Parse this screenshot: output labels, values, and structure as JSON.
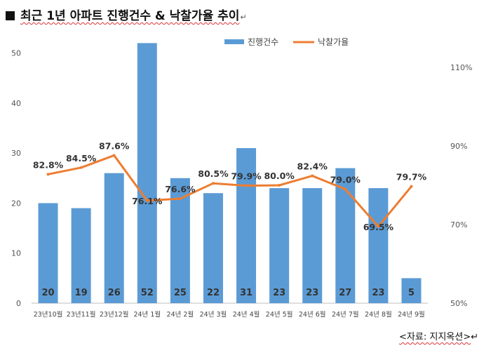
{
  "header": {
    "title": "최근 1년 아파트 진행건수 & 낙찰가율 추이",
    "paragraph_mark": "↵"
  },
  "source": {
    "text": "<자료: 지지옥션>",
    "paragraph_mark": "↵"
  },
  "colors": {
    "bar": "#5b9bd5",
    "line": "#ed7d31"
  },
  "chart_data": {
    "type": "bar",
    "title": "최근 1년 아파트 진행건수 & 낙찰가율 추이",
    "categories": [
      "23년10월",
      "23년11월",
      "23년12월",
      "24년 1월",
      "24년 2월",
      "24년 3월",
      "24년 4월",
      "24년 5월",
      "24년 6월",
      "24년 7월",
      "24년 8월",
      "24년 9월"
    ],
    "series": [
      {
        "name": "진행건수",
        "type": "bar",
        "axis": "left",
        "values": [
          20,
          19,
          26,
          52,
          25,
          22,
          31,
          23,
          23,
          27,
          23,
          5
        ],
        "labels": [
          "20",
          "19",
          "26",
          "52",
          "25",
          "22",
          "31",
          "23",
          "23",
          "27",
          "23",
          "5"
        ]
      },
      {
        "name": "낙찰가율",
        "type": "line",
        "axis": "right",
        "values": [
          82.8,
          84.5,
          87.6,
          76.1,
          76.6,
          80.5,
          79.9,
          80.0,
          82.4,
          79.0,
          69.5,
          79.7
        ],
        "labels": [
          "82.8%",
          "84.5%",
          "87.6%",
          "76.1%",
          "76.6%",
          "80.5%",
          "79.9%",
          "80.0%",
          "82.4%",
          "79.0%",
          "69.5%",
          "79.7%"
        ]
      }
    ],
    "y_left": {
      "min": 0,
      "max": 55,
      "ticks": [
        0,
        10,
        20,
        30,
        40,
        50
      ],
      "tick_labels": [
        "0",
        "10",
        "20",
        "30",
        "40",
        "50"
      ]
    },
    "y_right": {
      "min": 50,
      "max": 120,
      "ticks": [
        50,
        70,
        90,
        110
      ],
      "tick_labels": [
        "50%",
        "70%",
        "90%",
        "110%"
      ]
    },
    "legend": {
      "position": "top-right",
      "entries": [
        "진행건수",
        "낙찰가율"
      ]
    },
    "grid": false
  }
}
